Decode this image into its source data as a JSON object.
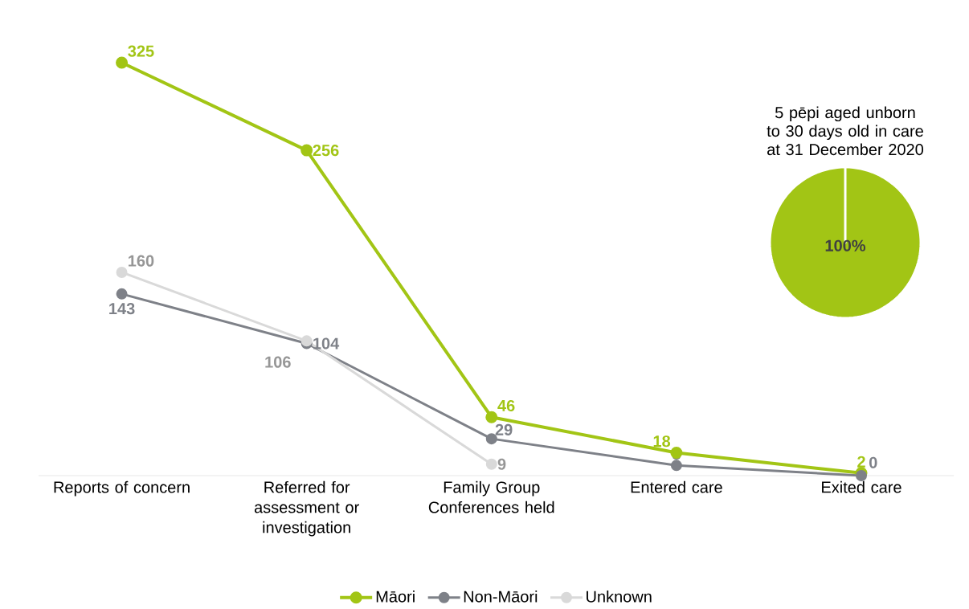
{
  "chart_data": [
    {
      "type": "line",
      "categories": [
        "Reports of concern",
        "Referred for assessment or investigation",
        "Family Group Conferences held",
        "Entered care",
        "Exited care"
      ],
      "series": [
        {
          "name": "Māori",
          "color": "#a2c515",
          "values": [
            325,
            256,
            46,
            18,
            2
          ]
        },
        {
          "name": "Non-Māori",
          "color": "#7e8188",
          "values": [
            143,
            104,
            29,
            8,
            0
          ]
        },
        {
          "name": "Unknown",
          "color": "#d9d9d9",
          "values": [
            160,
            106,
            9,
            null,
            null
          ]
        }
      ],
      "data_labels": true,
      "marker": "circle",
      "legend": "bottom",
      "grid": false
    },
    {
      "type": "pie",
      "title": "5 pēpi aged unborn to 30 days old in care at 31 December 2020",
      "categories": [
        null
      ],
      "values": [
        100
      ],
      "colors": [
        "#a2c515"
      ],
      "value_labels": [
        "100%"
      ]
    }
  ]
}
